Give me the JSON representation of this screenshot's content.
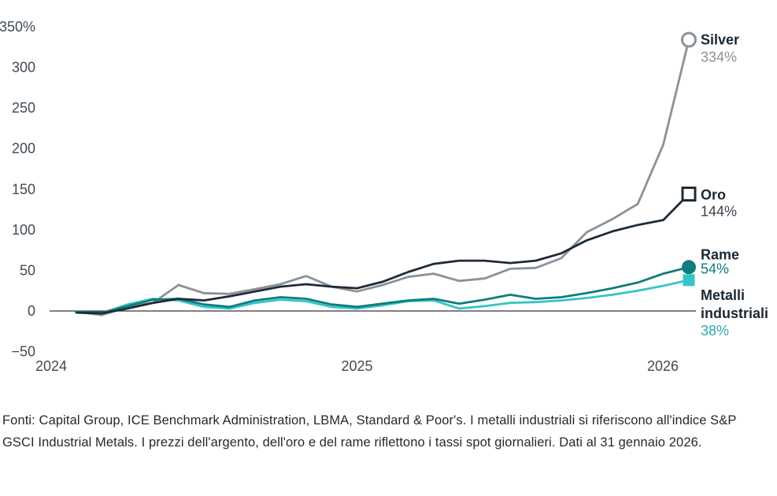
{
  "chart_data": {
    "type": "line",
    "title": "",
    "x_axis": {
      "tick_labels": [
        "2024",
        "2025",
        "2026"
      ]
    },
    "y_axis": {
      "unit": "%",
      "range": [
        -50,
        350
      ],
      "ticks": [
        {
          "label": "350%",
          "value": 350
        },
        {
          "label": "300",
          "value": 300
        },
        {
          "label": "250",
          "value": 250
        },
        {
          "label": "200",
          "value": 200
        },
        {
          "label": "150",
          "value": 150
        },
        {
          "label": "100",
          "value": 100
        },
        {
          "label": "50",
          "value": 50
        },
        {
          "label": "0",
          "value": 0
        },
        {
          "label": "−50",
          "value": -50
        }
      ]
    },
    "grid": false,
    "legend_position": "right-end-of-line",
    "series": [
      {
        "name": "Silver",
        "name_lines": [
          "Silver"
        ],
        "end_label": "334%",
        "color": "#8b9196",
        "value_color": "#8b9196",
        "marker": "open-circle",
        "values": [
          -1,
          -5,
          5,
          10,
          32,
          22,
          21,
          27,
          33,
          43,
          30,
          24,
          32,
          42,
          46,
          37,
          40,
          52,
          53,
          65,
          97,
          113,
          132,
          205,
          334
        ]
      },
      {
        "name": "Oro",
        "name_lines": [
          "Oro"
        ],
        "end_label": "144%",
        "color": "#1e2b37",
        "value_color": "#3a434c",
        "marker": "open-square",
        "values": [
          -2,
          -3,
          3,
          10,
          15,
          13,
          18,
          24,
          30,
          33,
          30,
          28,
          36,
          48,
          58,
          62,
          62,
          59,
          62,
          71,
          87,
          98,
          106,
          112,
          144
        ]
      },
      {
        "name": "Rame",
        "name_lines": [
          "Rame"
        ],
        "end_label": "54%",
        "color": "#0f7c7e",
        "value_color": "#15787c",
        "marker": "filled-circle",
        "values": [
          -1,
          -2,
          6,
          14,
          15,
          8,
          5,
          13,
          17,
          15,
          8,
          5,
          9,
          13,
          15,
          9,
          14,
          20,
          15,
          17,
          22,
          28,
          35,
          46,
          54
        ]
      },
      {
        "name": "Metalli industriali",
        "name_lines": [
          "Metalli",
          "industriali"
        ],
        "end_label": "38%",
        "color": "#35c4c8",
        "value_color": "#2baab0",
        "marker": "filled-square",
        "values": [
          -1,
          -3,
          8,
          15,
          13,
          5,
          3,
          10,
          14,
          12,
          5,
          3,
          7,
          12,
          13,
          3,
          6,
          10,
          11,
          13,
          16,
          20,
          25,
          31,
          38
        ]
      }
    ],
    "colors": {
      "axis_line": "#30343a",
      "tick_text": "#414b55",
      "label_name_text": "#1a2833"
    }
  },
  "footer": {
    "text": "Fonti: Capital Group, ICE Benchmark Administration, LBMA, Standard & Poor's. I metalli industriali si riferiscono all'indice S&P GSCI Industrial Metals. I prezzi dell'argento, dell'oro e del rame riflettono i tassi spot giornalieri. Dati al 31 gennaio 2026."
  }
}
